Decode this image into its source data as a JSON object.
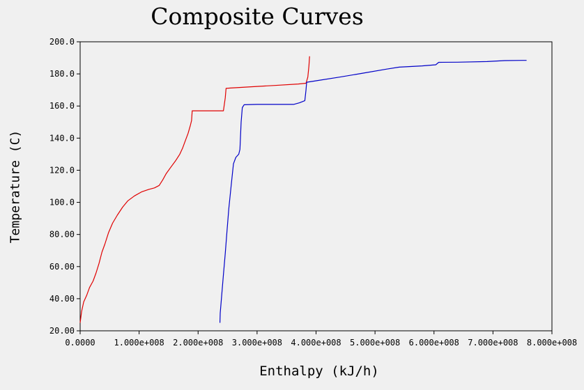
{
  "chart_data": {
    "type": "line",
    "title": "Composite Curves",
    "xlabel": "Enthalpy (kJ/h)",
    "ylabel": "Temperature (C)",
    "xlim": [
      0,
      800000000
    ],
    "ylim": [
      20,
      200
    ],
    "x_ticks": [
      0,
      100000000,
      200000000,
      300000000,
      400000000,
      500000000,
      600000000,
      700000000,
      800000000
    ],
    "x_tick_labels": [
      "0.0000",
      "1.000e+008",
      "2.000e+008",
      "3.000e+008",
      "4.000e+008",
      "5.000e+008",
      "6.000e+008",
      "7.000e+008",
      "8.000e+008"
    ],
    "y_ticks": [
      20,
      40,
      60,
      80,
      100,
      120,
      140,
      160,
      180,
      200
    ],
    "y_tick_labels": [
      "20.00",
      "40.00",
      "60.00",
      "80.00",
      "100.0",
      "120.0",
      "140.0",
      "160.0",
      "180.0",
      "200.0"
    ],
    "grid": false,
    "legend": "none",
    "series": [
      {
        "color": "#e00000",
        "points": [
          [
            0,
            25
          ],
          [
            2500000,
            32
          ],
          [
            6000000,
            38
          ],
          [
            11000000,
            42
          ],
          [
            16000000,
            47
          ],
          [
            22000000,
            51
          ],
          [
            27000000,
            56
          ],
          [
            32000000,
            62
          ],
          [
            37000000,
            69
          ],
          [
            42000000,
            74
          ],
          [
            48000000,
            81
          ],
          [
            55000000,
            87
          ],
          [
            63000000,
            92
          ],
          [
            72000000,
            97
          ],
          [
            81000000,
            101
          ],
          [
            92000000,
            104
          ],
          [
            104000000,
            106.5
          ],
          [
            116000000,
            108
          ],
          [
            126000000,
            109
          ],
          [
            134000000,
            110.5
          ],
          [
            140000000,
            114
          ],
          [
            146000000,
            118
          ],
          [
            154000000,
            122
          ],
          [
            162000000,
            126
          ],
          [
            169000000,
            130
          ],
          [
            174000000,
            134
          ],
          [
            178000000,
            138
          ],
          [
            183000000,
            143
          ],
          [
            187000000,
            148
          ],
          [
            189000000,
            151
          ],
          [
            190000000,
            157
          ],
          [
            200000000,
            157
          ],
          [
            215000000,
            157
          ],
          [
            235000000,
            157
          ],
          [
            243000000,
            157
          ],
          [
            246000000,
            165
          ],
          [
            247500000,
            171
          ],
          [
            255000000,
            171.2
          ],
          [
            290000000,
            172
          ],
          [
            330000000,
            172.8
          ],
          [
            370000000,
            173.7
          ],
          [
            383000000,
            174.2
          ],
          [
            386000000,
            178
          ],
          [
            388000000,
            185
          ],
          [
            389000000,
            191
          ]
        ]
      },
      {
        "color": "#0000c8",
        "points": [
          [
            237000000,
            25
          ],
          [
            237500000,
            31
          ],
          [
            240000000,
            42
          ],
          [
            243000000,
            55
          ],
          [
            246000000,
            68
          ],
          [
            249000000,
            82
          ],
          [
            252000000,
            96
          ],
          [
            256000000,
            110
          ],
          [
            260000000,
            124
          ],
          [
            264000000,
            128
          ],
          [
            269000000,
            130
          ],
          [
            271000000,
            133
          ],
          [
            273000000,
            150
          ],
          [
            275000000,
            159
          ],
          [
            278000000,
            160.8
          ],
          [
            300000000,
            161
          ],
          [
            330000000,
            161
          ],
          [
            362000000,
            161
          ],
          [
            372000000,
            162
          ],
          [
            381000000,
            163.3
          ],
          [
            383000000,
            170
          ],
          [
            384000000,
            174.8
          ],
          [
            400000000,
            175.7
          ],
          [
            440000000,
            178
          ],
          [
            480000000,
            180.5
          ],
          [
            520000000,
            183
          ],
          [
            541000000,
            184.2
          ],
          [
            580000000,
            185
          ],
          [
            603000000,
            185.7
          ],
          [
            608000000,
            187.2
          ],
          [
            640000000,
            187.3
          ],
          [
            690000000,
            187.7
          ],
          [
            720000000,
            188.3
          ],
          [
            750000000,
            188.4
          ],
          [
            757000000,
            188.4
          ]
        ]
      }
    ]
  }
}
